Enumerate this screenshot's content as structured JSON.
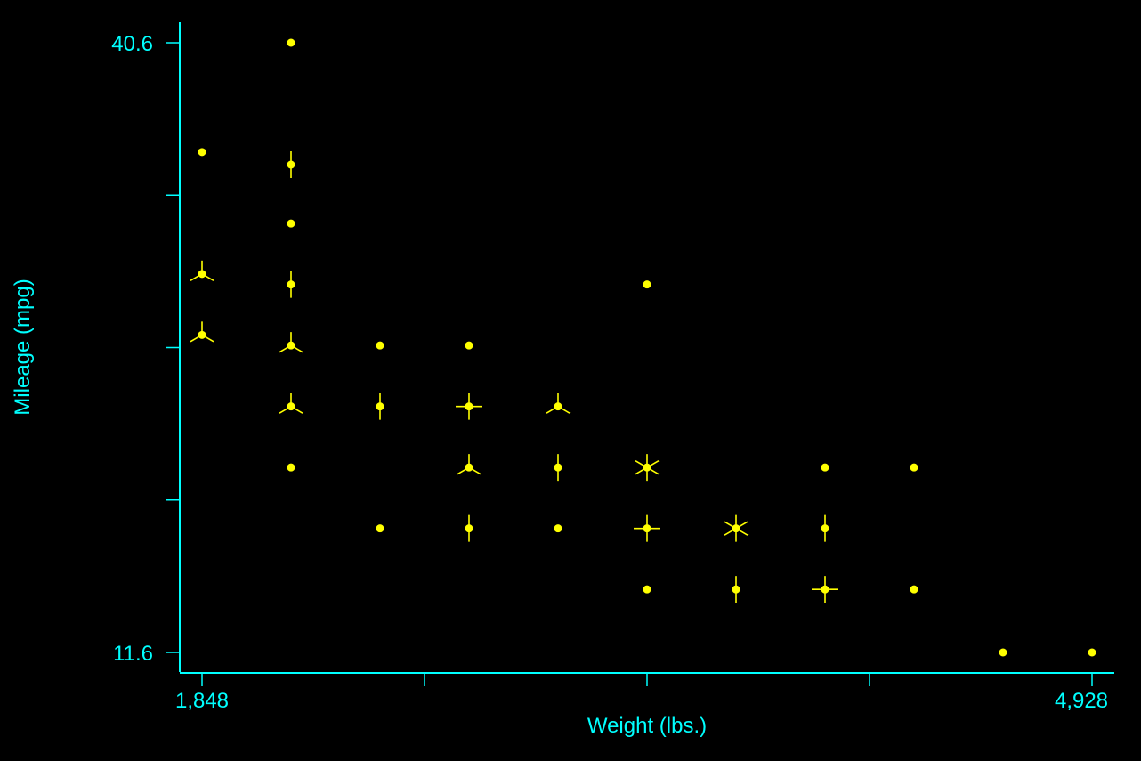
{
  "colors": {
    "background": "#000000",
    "axes": "#00FFFF",
    "marker": "#FFFF00"
  },
  "chart_data": {
    "type": "scatter",
    "subtype": "sunflower",
    "xlabel": "Weight (lbs.)",
    "ylabel": "Mileage (mpg)",
    "xlim": [
      1848,
      4928
    ],
    "ylim": [
      11.6,
      40.6
    ],
    "x_tick_labels": [
      "1,848",
      "4,928"
    ],
    "y_tick_labels": [
      "11.6",
      "40.6"
    ],
    "x_ticks": [
      1848,
      2618,
      3388,
      4158,
      4928
    ],
    "y_ticks": [
      11.6,
      18.85,
      26.1,
      33.35,
      40.6
    ],
    "grid": false,
    "legend": "none",
    "points": [
      {
        "x": 1848,
        "y": 35.4,
        "count": 1
      },
      {
        "x": 1848,
        "y": 29.6,
        "count": 3
      },
      {
        "x": 1848,
        "y": 26.7,
        "count": 3
      },
      {
        "x": 2156,
        "y": 40.6,
        "count": 1
      },
      {
        "x": 2156,
        "y": 34.8,
        "count": 2
      },
      {
        "x": 2156,
        "y": 32.0,
        "count": 1
      },
      {
        "x": 2156,
        "y": 29.1,
        "count": 2
      },
      {
        "x": 2156,
        "y": 26.2,
        "count": 3
      },
      {
        "x": 2156,
        "y": 23.3,
        "count": 3
      },
      {
        "x": 2156,
        "y": 20.4,
        "count": 1
      },
      {
        "x": 2464,
        "y": 26.2,
        "count": 1
      },
      {
        "x": 2464,
        "y": 23.3,
        "count": 2
      },
      {
        "x": 2464,
        "y": 17.5,
        "count": 1
      },
      {
        "x": 2772,
        "y": 26.2,
        "count": 1
      },
      {
        "x": 2772,
        "y": 23.3,
        "count": 4
      },
      {
        "x": 2772,
        "y": 20.4,
        "count": 3
      },
      {
        "x": 2772,
        "y": 17.5,
        "count": 2
      },
      {
        "x": 3080,
        "y": 23.3,
        "count": 3
      },
      {
        "x": 3080,
        "y": 20.4,
        "count": 2
      },
      {
        "x": 3080,
        "y": 17.5,
        "count": 1
      },
      {
        "x": 3388,
        "y": 29.1,
        "count": 1
      },
      {
        "x": 3388,
        "y": 20.4,
        "count": 6
      },
      {
        "x": 3388,
        "y": 17.5,
        "count": 4
      },
      {
        "x": 3388,
        "y": 14.6,
        "count": 1
      },
      {
        "x": 3696,
        "y": 17.5,
        "count": 6
      },
      {
        "x": 3696,
        "y": 14.6,
        "count": 2
      },
      {
        "x": 4004,
        "y": 20.4,
        "count": 1
      },
      {
        "x": 4004,
        "y": 17.5,
        "count": 2
      },
      {
        "x": 4004,
        "y": 14.6,
        "count": 4
      },
      {
        "x": 4312,
        "y": 20.4,
        "count": 1
      },
      {
        "x": 4312,
        "y": 14.6,
        "count": 1
      },
      {
        "x": 4620,
        "y": 11.6,
        "count": 1
      },
      {
        "x": 4928,
        "y": 11.6,
        "count": 1
      }
    ]
  }
}
